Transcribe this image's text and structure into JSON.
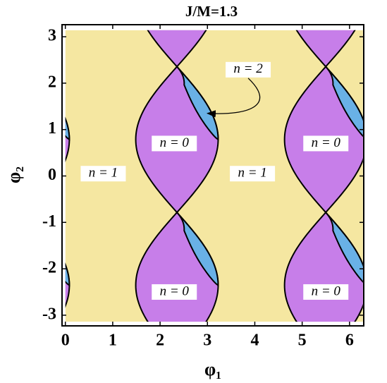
{
  "chart_data": {
    "type": "region",
    "title": "J/M=1.3",
    "xlabel": "φ₁",
    "ylabel": "φ₂",
    "xlim": [
      -0.07,
      6.3
    ],
    "xticks": [
      0,
      1,
      2,
      3,
      4,
      5,
      6
    ],
    "ylim": [
      -3.23,
      3.26
    ],
    "yticks": [
      -3,
      -2,
      -1,
      0,
      1,
      2,
      3
    ],
    "background": "#f5e7a1",
    "regions": [
      {
        "label": "n = 0",
        "color": "#c77ee9"
      },
      {
        "label": "n = 1",
        "color": "#f5e7a1"
      },
      {
        "label": "n = 2",
        "color": "#69b1e6"
      }
    ]
  }
}
